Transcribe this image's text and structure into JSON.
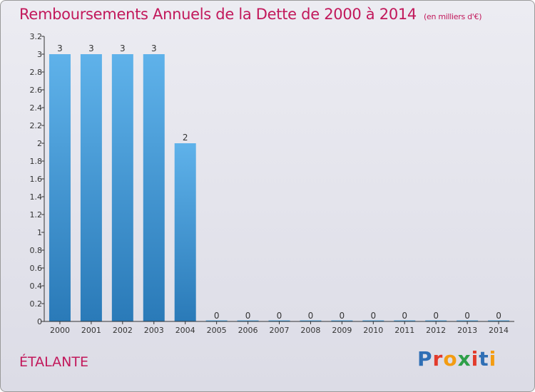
{
  "page": {
    "title": "Remboursements Annuels de la Dette de 2000 à 2014",
    "unit": "(en milliers d'€)",
    "commune": "ÉTALANTE",
    "logo": {
      "text": "Proxiti",
      "colors": [
        "#2f6fb5",
        "#e23b2c",
        "#f39c12",
        "#2e9f48",
        "#e23b2c",
        "#2f6fb5",
        "#f39c12"
      ]
    }
  },
  "chart_data": {
    "type": "bar",
    "title": "Remboursements Annuels de la Dette de 2000 à 2014",
    "subtitle": "(en milliers d'€)",
    "xlabel": "",
    "ylabel": "",
    "categories": [
      "2000",
      "2001",
      "2002",
      "2003",
      "2004",
      "2005",
      "2006",
      "2007",
      "2008",
      "2009",
      "2010",
      "2011",
      "2012",
      "2013",
      "2014"
    ],
    "values": [
      3,
      3,
      3,
      3,
      2,
      0,
      0,
      0,
      0,
      0,
      0,
      0,
      0,
      0,
      0
    ],
    "data_labels": [
      "3",
      "3",
      "3",
      "3",
      "2",
      "0",
      "0",
      "0",
      "0",
      "0",
      "0",
      "0",
      "0",
      "0",
      "0"
    ],
    "ylim": [
      0,
      3.2
    ],
    "yticks": [
      0,
      0.2,
      0.4,
      0.6,
      0.8,
      1,
      1.2,
      1.4,
      1.6,
      1.8,
      2,
      2.2,
      2.4,
      2.6,
      2.8,
      3,
      3.2
    ],
    "ytick_labels": [
      "0",
      "0.2",
      "0.4",
      "0.6",
      "0.8",
      "1",
      "1.2",
      "1.4",
      "1.6",
      "1.8",
      "2",
      "2.2",
      "2.4",
      "2.6",
      "2.8",
      "3",
      "3.2"
    ],
    "grid": false,
    "colors": {
      "bar_top": "#5fb2ea",
      "bar_bottom": "#2a7ab8",
      "axis": "#333333",
      "label": "#333333"
    }
  }
}
